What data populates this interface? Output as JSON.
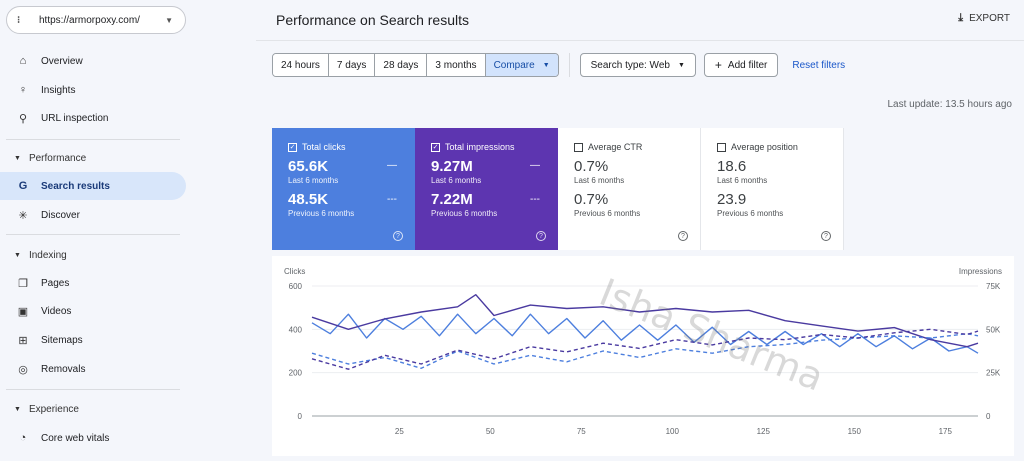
{
  "property": {
    "url": "https://armorpoxy.com/",
    "icon": "site-icon"
  },
  "nav": {
    "overview": "Overview",
    "insights": "Insights",
    "url_inspection": "URL inspection",
    "performance": "Performance",
    "search_results": "Search results",
    "discover": "Discover",
    "indexing": "Indexing",
    "pages": "Pages",
    "videos": "Videos",
    "sitemaps": "Sitemaps",
    "removals": "Removals",
    "experience": "Experience",
    "core_web_vitals": "Core web vitals"
  },
  "header": {
    "title": "Performance on Search results",
    "export": "EXPORT"
  },
  "filters": {
    "ranges": [
      "24 hours",
      "7 days",
      "28 days",
      "3 months"
    ],
    "compare": "Compare",
    "search_type": "Search type: Web",
    "add_filter": "Add filter",
    "reset": "Reset filters"
  },
  "last_update": "Last update: 13.5 hours ago",
  "metrics": [
    {
      "label": "Total clicks",
      "value": "65.6K",
      "sub": "Last 6 months",
      "prev_value": "48.5K",
      "prev_sub": "Previous 6 months",
      "checked": true,
      "color": "#4d7fde"
    },
    {
      "label": "Total impressions",
      "value": "9.27M",
      "sub": "Last 6 months",
      "prev_value": "7.22M",
      "prev_sub": "Previous 6 months",
      "checked": true,
      "color": "#5d35b0"
    },
    {
      "label": "Average CTR",
      "value": "0.7%",
      "sub": "Last 6 months",
      "prev_value": "0.7%",
      "prev_sub": "Previous 6 months",
      "checked": false
    },
    {
      "label": "Average position",
      "value": "18.6",
      "sub": "Last 6 months",
      "prev_value": "23.9",
      "prev_sub": "Previous 6 months",
      "checked": false
    }
  ],
  "watermark": "Isha Sharma",
  "chart_data": {
    "type": "line",
    "ylabel_left": "Clicks",
    "ylabel_right": "Impressions",
    "ylim_left": [
      0,
      600
    ],
    "ylim_right": [
      0,
      75000
    ],
    "yticks_left": [
      "0",
      "200",
      "400",
      "600"
    ],
    "yticks_right": [
      "0",
      "25K",
      "50K",
      "75K"
    ],
    "xticks": [
      "25",
      "50",
      "75",
      "100",
      "125",
      "150",
      "175"
    ],
    "xlim": [
      1,
      184
    ],
    "grid": true,
    "series": [
      {
        "metric": "clicks",
        "period": "last",
        "style": "solid",
        "color": "#4d7fde",
        "axis": "left",
        "points": [
          [
            1,
            430
          ],
          [
            6,
            380
          ],
          [
            11,
            470
          ],
          [
            16,
            360
          ],
          [
            21,
            450
          ],
          [
            26,
            400
          ],
          [
            31,
            460
          ],
          [
            36,
            370
          ],
          [
            41,
            470
          ],
          [
            46,
            380
          ],
          [
            51,
            450
          ],
          [
            56,
            370
          ],
          [
            61,
            470
          ],
          [
            66,
            380
          ],
          [
            71,
            450
          ],
          [
            76,
            360
          ],
          [
            81,
            440
          ],
          [
            86,
            350
          ],
          [
            91,
            420
          ],
          [
            96,
            350
          ],
          [
            101,
            420
          ],
          [
            106,
            340
          ],
          [
            111,
            410
          ],
          [
            116,
            330
          ],
          [
            121,
            390
          ],
          [
            126,
            330
          ],
          [
            131,
            390
          ],
          [
            136,
            330
          ],
          [
            141,
            380
          ],
          [
            146,
            320
          ],
          [
            151,
            380
          ],
          [
            156,
            320
          ],
          [
            161,
            370
          ],
          [
            166,
            310
          ],
          [
            171,
            360
          ],
          [
            176,
            300
          ],
          [
            181,
            320
          ],
          [
            184,
            290
          ]
        ]
      },
      {
        "metric": "impressions",
        "period": "last",
        "style": "solid",
        "color": "#4a3aa0",
        "axis": "right",
        "points": [
          [
            1,
            57000
          ],
          [
            11,
            50000
          ],
          [
            21,
            56000
          ],
          [
            31,
            60000
          ],
          [
            41,
            63000
          ],
          [
            46,
            70000
          ],
          [
            51,
            58000
          ],
          [
            61,
            64000
          ],
          [
            71,
            62000
          ],
          [
            81,
            63000
          ],
          [
            91,
            60000
          ],
          [
            101,
            62000
          ],
          [
            111,
            60000
          ],
          [
            121,
            61000
          ],
          [
            131,
            55000
          ],
          [
            141,
            52000
          ],
          [
            151,
            49000
          ],
          [
            161,
            51000
          ],
          [
            171,
            44000
          ],
          [
            181,
            40000
          ],
          [
            184,
            42000
          ]
        ]
      },
      {
        "metric": "clicks",
        "period": "previous",
        "style": "dashed",
        "color": "#4d7fde",
        "axis": "left",
        "points": [
          [
            1,
            290
          ],
          [
            11,
            240
          ],
          [
            21,
            270
          ],
          [
            31,
            220
          ],
          [
            41,
            300
          ],
          [
            51,
            240
          ],
          [
            61,
            280
          ],
          [
            71,
            250
          ],
          [
            81,
            300
          ],
          [
            91,
            270
          ],
          [
            101,
            310
          ],
          [
            111,
            290
          ],
          [
            121,
            320
          ],
          [
            131,
            330
          ],
          [
            141,
            350
          ],
          [
            151,
            360
          ],
          [
            161,
            370
          ],
          [
            171,
            360
          ],
          [
            181,
            380
          ],
          [
            184,
            370
          ]
        ]
      },
      {
        "metric": "impressions",
        "period": "previous",
        "style": "dashed",
        "color": "#4a3aa0",
        "axis": "right",
        "points": [
          [
            1,
            33000
          ],
          [
            11,
            27000
          ],
          [
            21,
            35000
          ],
          [
            31,
            30000
          ],
          [
            41,
            38000
          ],
          [
            51,
            33000
          ],
          [
            61,
            40000
          ],
          [
            71,
            37000
          ],
          [
            81,
            42000
          ],
          [
            91,
            39000
          ],
          [
            101,
            44000
          ],
          [
            111,
            41000
          ],
          [
            121,
            45000
          ],
          [
            131,
            44000
          ],
          [
            141,
            47000
          ],
          [
            151,
            45000
          ],
          [
            161,
            48000
          ],
          [
            171,
            50000
          ],
          [
            181,
            47000
          ],
          [
            184,
            49000
          ]
        ]
      }
    ]
  }
}
